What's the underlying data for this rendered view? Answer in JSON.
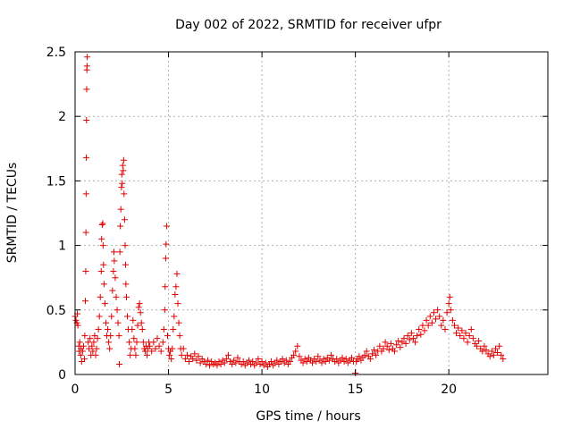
{
  "chart_data": {
    "type": "scatter",
    "title": "Day 002 of 2022, SRMTID for receiver ufpr",
    "xlabel": "GPS time / hours",
    "ylabel": "SRMTID / TECUs",
    "xlim": [
      0,
      25.3
    ],
    "ylim": [
      0,
      2.5
    ],
    "x_ticks": [
      0,
      5,
      10,
      15,
      20
    ],
    "x_tick_labels": [
      "0",
      "5",
      "10",
      "15",
      "20"
    ],
    "y_ticks": [
      0,
      0.5,
      1,
      1.5,
      2,
      2.5
    ],
    "y_tick_labels": [
      "0",
      "0.5",
      "1",
      "1.5",
      "2",
      "2.5"
    ],
    "grid": true,
    "marker": "plus",
    "series": [
      {
        "name": "SRMTID",
        "color": "#e00000",
        "points": [
          [
            0.0,
            0.45
          ],
          [
            0.05,
            0.42
          ],
          [
            0.1,
            0.4
          ],
          [
            0.12,
            0.47
          ],
          [
            0.15,
            0.38
          ],
          [
            0.2,
            0.22
          ],
          [
            0.22,
            0.18
          ],
          [
            0.25,
            0.25
          ],
          [
            0.3,
            0.15
          ],
          [
            0.32,
            0.2
          ],
          [
            0.35,
            0.1
          ],
          [
            0.4,
            0.18
          ],
          [
            0.45,
            0.22
          ],
          [
            0.5,
            0.12
          ],
          [
            0.52,
            0.3
          ],
          [
            0.55,
            0.57
          ],
          [
            0.57,
            0.8
          ],
          [
            0.58,
            1.1
          ],
          [
            0.59,
            1.4
          ],
          [
            0.6,
            1.68
          ],
          [
            0.61,
            1.97
          ],
          [
            0.62,
            2.21
          ],
          [
            0.63,
            2.36
          ],
          [
            0.64,
            2.39
          ],
          [
            0.65,
            2.46
          ],
          [
            0.7,
            0.25
          ],
          [
            0.75,
            0.2
          ],
          [
            0.8,
            0.28
          ],
          [
            0.85,
            0.15
          ],
          [
            0.9,
            0.22
          ],
          [
            0.95,
            0.18
          ],
          [
            1.0,
            0.25
          ],
          [
            1.05,
            0.3
          ],
          [
            1.1,
            0.15
          ],
          [
            1.15,
            0.2
          ],
          [
            1.2,
            0.28
          ],
          [
            1.25,
            0.35
          ],
          [
            1.3,
            0.45
          ],
          [
            1.35,
            0.6
          ],
          [
            1.4,
            0.8
          ],
          [
            1.42,
            1.05
          ],
          [
            1.45,
            1.16
          ],
          [
            1.48,
            1.17
          ],
          [
            1.5,
            1.0
          ],
          [
            1.52,
            0.85
          ],
          [
            1.55,
            0.7
          ],
          [
            1.6,
            0.55
          ],
          [
            1.65,
            0.4
          ],
          [
            1.7,
            0.3
          ],
          [
            1.75,
            0.35
          ],
          [
            1.8,
            0.25
          ],
          [
            1.85,
            0.2
          ],
          [
            1.9,
            0.3
          ],
          [
            1.95,
            0.45
          ],
          [
            2.0,
            0.65
          ],
          [
            2.05,
            0.8
          ],
          [
            2.08,
            0.95
          ],
          [
            2.1,
            0.88
          ],
          [
            2.15,
            0.75
          ],
          [
            2.2,
            0.6
          ],
          [
            2.25,
            0.5
          ],
          [
            2.3,
            0.4
          ],
          [
            2.35,
            0.3
          ],
          [
            2.37,
            0.08
          ],
          [
            2.4,
            0.95
          ],
          [
            2.42,
            1.15
          ],
          [
            2.45,
            1.28
          ],
          [
            2.48,
            1.45
          ],
          [
            2.5,
            1.55
          ],
          [
            2.52,
            1.48
          ],
          [
            2.55,
            1.62
          ],
          [
            2.58,
            1.58
          ],
          [
            2.6,
            1.66
          ],
          [
            2.62,
            1.4
          ],
          [
            2.65,
            1.2
          ],
          [
            2.68,
            1.0
          ],
          [
            2.7,
            0.85
          ],
          [
            2.72,
            0.7
          ],
          [
            2.75,
            0.6
          ],
          [
            2.8,
            0.45
          ],
          [
            2.85,
            0.35
          ],
          [
            2.9,
            0.25
          ],
          [
            2.95,
            0.15
          ],
          [
            3.0,
            0.2
          ],
          [
            3.05,
            0.35
          ],
          [
            3.1,
            0.42
          ],
          [
            3.15,
            0.28
          ],
          [
            3.2,
            0.2
          ],
          [
            3.25,
            0.15
          ],
          [
            3.3,
            0.25
          ],
          [
            3.35,
            0.38
          ],
          [
            3.4,
            0.52
          ],
          [
            3.45,
            0.55
          ],
          [
            3.5,
            0.48
          ],
          [
            3.55,
            0.4
          ],
          [
            3.6,
            0.35
          ],
          [
            3.65,
            0.25
          ],
          [
            3.7,
            0.2
          ],
          [
            3.75,
            0.18
          ],
          [
            3.8,
            0.22
          ],
          [
            3.85,
            0.15
          ],
          [
            3.9,
            0.2
          ],
          [
            3.95,
            0.25
          ],
          [
            4.0,
            0.22
          ],
          [
            4.1,
            0.18
          ],
          [
            4.2,
            0.25
          ],
          [
            4.3,
            0.2
          ],
          [
            4.4,
            0.28
          ],
          [
            4.5,
            0.22
          ],
          [
            4.6,
            0.18
          ],
          [
            4.7,
            0.25
          ],
          [
            4.75,
            0.35
          ],
          [
            4.8,
            0.5
          ],
          [
            4.82,
            0.68
          ],
          [
            4.85,
            0.9
          ],
          [
            4.87,
            1.01
          ],
          [
            4.9,
            1.15
          ],
          [
            4.95,
            0.3
          ],
          [
            5.0,
            0.2
          ],
          [
            5.05,
            0.15
          ],
          [
            5.1,
            0.18
          ],
          [
            5.15,
            0.12
          ],
          [
            5.2,
            0.2
          ],
          [
            5.25,
            0.35
          ],
          [
            5.3,
            0.45
          ],
          [
            5.35,
            0.62
          ],
          [
            5.4,
            0.68
          ],
          [
            5.45,
            0.78
          ],
          [
            5.5,
            0.55
          ],
          [
            5.55,
            0.4
          ],
          [
            5.6,
            0.3
          ],
          [
            5.65,
            0.2
          ],
          [
            5.7,
            0.15
          ],
          [
            5.8,
            0.2
          ],
          [
            5.9,
            0.12
          ],
          [
            6.0,
            0.15
          ],
          [
            6.1,
            0.1
          ],
          [
            6.2,
            0.14
          ],
          [
            6.3,
            0.12
          ],
          [
            6.4,
            0.16
          ],
          [
            6.5,
            0.11
          ],
          [
            6.6,
            0.14
          ],
          [
            6.7,
            0.09
          ],
          [
            6.8,
            0.12
          ],
          [
            6.9,
            0.1
          ],
          [
            7.0,
            0.08
          ],
          [
            7.1,
            0.11
          ],
          [
            7.2,
            0.07
          ],
          [
            7.3,
            0.1
          ],
          [
            7.4,
            0.08
          ],
          [
            7.5,
            0.09
          ],
          [
            7.6,
            0.07
          ],
          [
            7.7,
            0.1
          ],
          [
            7.8,
            0.08
          ],
          [
            7.9,
            0.11
          ],
          [
            8.0,
            0.09
          ],
          [
            8.1,
            0.12
          ],
          [
            8.2,
            0.15
          ],
          [
            8.3,
            0.1
          ],
          [
            8.4,
            0.08
          ],
          [
            8.5,
            0.11
          ],
          [
            8.6,
            0.09
          ],
          [
            8.7,
            0.13
          ],
          [
            8.8,
            0.1
          ],
          [
            8.9,
            0.08
          ],
          [
            9.0,
            0.1
          ],
          [
            9.1,
            0.07
          ],
          [
            9.2,
            0.09
          ],
          [
            9.3,
            0.11
          ],
          [
            9.4,
            0.08
          ],
          [
            9.5,
            0.1
          ],
          [
            9.6,
            0.07
          ],
          [
            9.7,
            0.09
          ],
          [
            9.8,
            0.12
          ],
          [
            9.9,
            0.08
          ],
          [
            10.0,
            0.1
          ],
          [
            10.1,
            0.07
          ],
          [
            10.2,
            0.09
          ],
          [
            10.3,
            0.06
          ],
          [
            10.4,
            0.08
          ],
          [
            10.5,
            0.1
          ],
          [
            10.6,
            0.07
          ],
          [
            10.7,
            0.09
          ],
          [
            10.8,
            0.11
          ],
          [
            10.9,
            0.08
          ],
          [
            11.0,
            0.1
          ],
          [
            11.1,
            0.12
          ],
          [
            11.2,
            0.09
          ],
          [
            11.3,
            0.11
          ],
          [
            11.4,
            0.08
          ],
          [
            11.5,
            0.1
          ],
          [
            11.6,
            0.13
          ],
          [
            11.7,
            0.15
          ],
          [
            11.8,
            0.18
          ],
          [
            11.9,
            0.22
          ],
          [
            12.0,
            0.14
          ],
          [
            12.1,
            0.11
          ],
          [
            12.2,
            0.09
          ],
          [
            12.3,
            0.12
          ],
          [
            12.4,
            0.1
          ],
          [
            12.5,
            0.13
          ],
          [
            12.6,
            0.11
          ],
          [
            12.7,
            0.09
          ],
          [
            12.8,
            0.12
          ],
          [
            12.9,
            0.1
          ],
          [
            13.0,
            0.14
          ],
          [
            13.1,
            0.11
          ],
          [
            13.2,
            0.09
          ],
          [
            13.3,
            0.12
          ],
          [
            13.4,
            0.1
          ],
          [
            13.5,
            0.13
          ],
          [
            13.6,
            0.11
          ],
          [
            13.7,
            0.15
          ],
          [
            13.8,
            0.12
          ],
          [
            13.9,
            0.1
          ],
          [
            14.0,
            0.12
          ],
          [
            14.1,
            0.09
          ],
          [
            14.2,
            0.11
          ],
          [
            14.3,
            0.13
          ],
          [
            14.4,
            0.1
          ],
          [
            14.5,
            0.12
          ],
          [
            14.6,
            0.09
          ],
          [
            14.7,
            0.11
          ],
          [
            14.8,
            0.13
          ],
          [
            14.9,
            0.1
          ],
          [
            15.0,
            0.01
          ],
          [
            15.05,
            0.1
          ],
          [
            15.1,
            0.12
          ],
          [
            15.2,
            0.14
          ],
          [
            15.3,
            0.11
          ],
          [
            15.4,
            0.13
          ],
          [
            15.5,
            0.15
          ],
          [
            15.6,
            0.18
          ],
          [
            15.7,
            0.14
          ],
          [
            15.8,
            0.12
          ],
          [
            15.9,
            0.16
          ],
          [
            16.0,
            0.19
          ],
          [
            16.1,
            0.15
          ],
          [
            16.2,
            0.18
          ],
          [
            16.3,
            0.22
          ],
          [
            16.4,
            0.18
          ],
          [
            16.5,
            0.2
          ],
          [
            16.6,
            0.25
          ],
          [
            16.7,
            0.22
          ],
          [
            16.8,
            0.19
          ],
          [
            16.9,
            0.24
          ],
          [
            17.0,
            0.2
          ],
          [
            17.1,
            0.18
          ],
          [
            17.2,
            0.23
          ],
          [
            17.3,
            0.26
          ],
          [
            17.4,
            0.21
          ],
          [
            17.5,
            0.25
          ],
          [
            17.6,
            0.28
          ],
          [
            17.7,
            0.24
          ],
          [
            17.8,
            0.3
          ],
          [
            17.9,
            0.27
          ],
          [
            18.0,
            0.32
          ],
          [
            18.1,
            0.28
          ],
          [
            18.2,
            0.25
          ],
          [
            18.3,
            0.3
          ],
          [
            18.4,
            0.35
          ],
          [
            18.5,
            0.31
          ],
          [
            18.6,
            0.38
          ],
          [
            18.7,
            0.34
          ],
          [
            18.8,
            0.42
          ],
          [
            18.9,
            0.38
          ],
          [
            19.0,
            0.45
          ],
          [
            19.1,
            0.4
          ],
          [
            19.2,
            0.48
          ],
          [
            19.3,
            0.43
          ],
          [
            19.4,
            0.5
          ],
          [
            19.5,
            0.45
          ],
          [
            19.6,
            0.38
          ],
          [
            19.7,
            0.42
          ],
          [
            19.8,
            0.35
          ],
          [
            19.9,
            0.48
          ],
          [
            20.0,
            0.55
          ],
          [
            20.05,
            0.6
          ],
          [
            20.1,
            0.5
          ],
          [
            20.2,
            0.42
          ],
          [
            20.3,
            0.38
          ],
          [
            20.4,
            0.32
          ],
          [
            20.5,
            0.36
          ],
          [
            20.6,
            0.3
          ],
          [
            20.7,
            0.34
          ],
          [
            20.8,
            0.28
          ],
          [
            20.9,
            0.32
          ],
          [
            21.0,
            0.25
          ],
          [
            21.1,
            0.3
          ],
          [
            21.2,
            0.35
          ],
          [
            21.3,
            0.28
          ],
          [
            21.4,
            0.24
          ],
          [
            21.5,
            0.22
          ],
          [
            21.6,
            0.26
          ],
          [
            21.7,
            0.2
          ],
          [
            21.8,
            0.18
          ],
          [
            21.9,
            0.22
          ],
          [
            22.0,
            0.19
          ],
          [
            22.1,
            0.16
          ],
          [
            22.2,
            0.14
          ],
          [
            22.3,
            0.18
          ],
          [
            22.4,
            0.15
          ],
          [
            22.5,
            0.2
          ],
          [
            22.6,
            0.17
          ],
          [
            22.7,
            0.22
          ],
          [
            22.8,
            0.15
          ],
          [
            22.9,
            0.12
          ]
        ]
      }
    ]
  }
}
